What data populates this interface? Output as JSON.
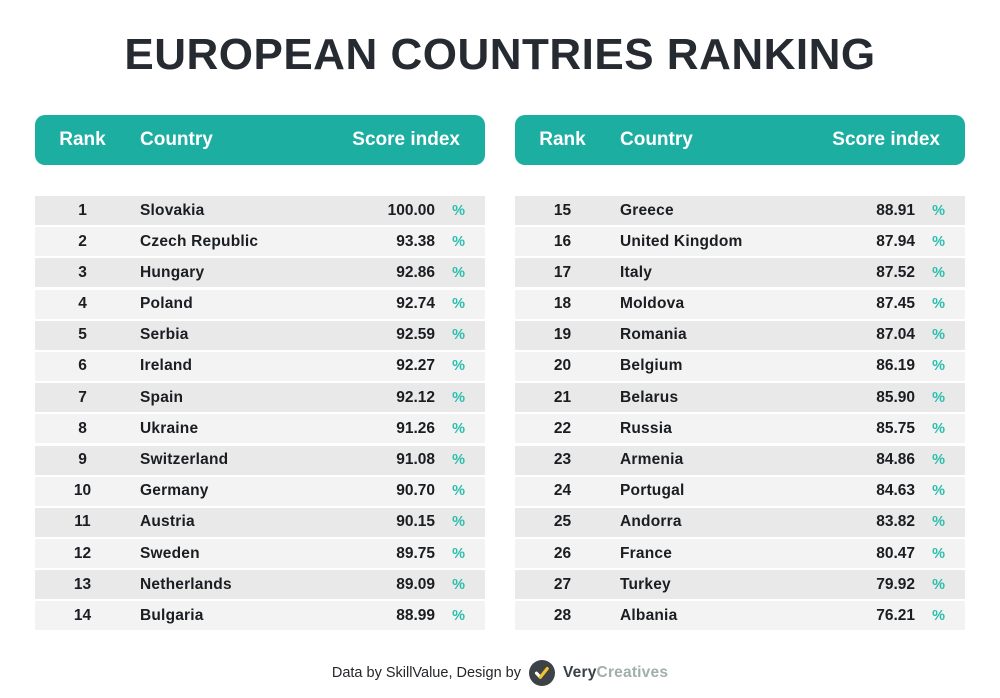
{
  "title": "EUROPEAN COUNTRIES RANKING",
  "table_headers": {
    "rank": "Rank",
    "country": "Country",
    "score": "Score index"
  },
  "percent_symbol": "%",
  "colors": {
    "header_teal": "#1CAEA0",
    "percent_teal": "#2BBEAD",
    "title_dark": "#262A31",
    "row_odd": "#E9E9E9",
    "row_even": "#F3F3F3",
    "logo_circle_dark": "#3C4245",
    "logo_check_yellow": "#F2C230",
    "logo_check_white": "#FFFFFF",
    "brand_gray": "#9FB0AC"
  },
  "chart_data": {
    "type": "table",
    "title": "EUROPEAN COUNTRIES RANKING",
    "columns": [
      "Rank",
      "Country",
      "Score index"
    ],
    "unit": "%",
    "rows": [
      {
        "rank": "1",
        "country": "Slovakia",
        "score": "100.00"
      },
      {
        "rank": "2",
        "country": "Czech Republic",
        "score": "93.38"
      },
      {
        "rank": "3",
        "country": "Hungary",
        "score": "92.86"
      },
      {
        "rank": "4",
        "country": "Poland",
        "score": "92.74"
      },
      {
        "rank": "5",
        "country": "Serbia",
        "score": "92.59"
      },
      {
        "rank": "6",
        "country": "Ireland",
        "score": "92.27"
      },
      {
        "rank": "7",
        "country": "Spain",
        "score": "92.12"
      },
      {
        "rank": "8",
        "country": "Ukraine",
        "score": "91.26"
      },
      {
        "rank": "9",
        "country": "Switzerland",
        "score": "91.08"
      },
      {
        "rank": "10",
        "country": "Germany",
        "score": "90.70"
      },
      {
        "rank": "11",
        "country": "Austria",
        "score": "90.15"
      },
      {
        "rank": "12",
        "country": "Sweden",
        "score": "89.75"
      },
      {
        "rank": "13",
        "country": "Netherlands",
        "score": "89.09"
      },
      {
        "rank": "14",
        "country": "Bulgaria",
        "score": "88.99"
      },
      {
        "rank": "15",
        "country": "Greece",
        "score": "88.91"
      },
      {
        "rank": "16",
        "country": "United Kingdom",
        "score": "87.94"
      },
      {
        "rank": "17",
        "country": "Italy",
        "score": "87.52"
      },
      {
        "rank": "18",
        "country": "Moldova",
        "score": "87.45"
      },
      {
        "rank": "19",
        "country": "Romania",
        "score": "87.04"
      },
      {
        "rank": "20",
        "country": "Belgium",
        "score": "86.19"
      },
      {
        "rank": "21",
        "country": "Belarus",
        "score": "85.90"
      },
      {
        "rank": "22",
        "country": "Russia",
        "score": "85.75"
      },
      {
        "rank": "23",
        "country": "Armenia",
        "score": "84.86"
      },
      {
        "rank": "24",
        "country": "Portugal",
        "score": "84.63"
      },
      {
        "rank": "25",
        "country": "Andorra",
        "score": "83.82"
      },
      {
        "rank": "26",
        "country": "France",
        "score": "80.47"
      },
      {
        "rank": "27",
        "country": "Turkey",
        "score": "79.92"
      },
      {
        "rank": "28",
        "country": "Albania",
        "score": "76.21"
      }
    ]
  },
  "footer": {
    "credit_text": "Data by SkillValue, Design by",
    "logo_icon": "check-icon",
    "brand_bold": "Very",
    "brand_light": "Creatives"
  }
}
